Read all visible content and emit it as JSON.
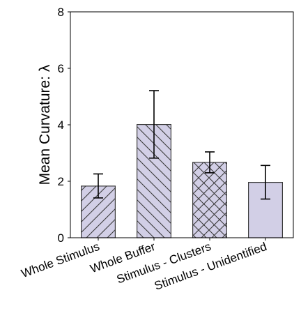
{
  "chart_data": {
    "type": "bar",
    "categories": [
      "Whole Stimulus",
      "Whole Buffer",
      "Stimulus - Clusters",
      "Stimulus - Unidentified"
    ],
    "values": [
      1.83,
      4.01,
      2.67,
      1.96
    ],
    "errors": [
      {
        "low": 1.41,
        "high": 2.26
      },
      {
        "low": 2.82,
        "high": 5.21
      },
      {
        "low": 2.3,
        "high": 3.04
      },
      {
        "low": 1.37,
        "high": 2.56
      }
    ],
    "hatches": [
      "diagonal-up",
      "diagonal-down",
      "crosshatch",
      "none"
    ],
    "ylabel": "Mean Curvature: λ",
    "xlabel": "",
    "title": "",
    "ylim": [
      0,
      8
    ],
    "yticks": [
      0,
      2,
      4,
      6,
      8
    ],
    "grid": false,
    "colors": {
      "bar_fill": "#d2cfe6",
      "bar_edge": "#3a3a3a",
      "hatch": "#3a3a3a",
      "error": "#000000"
    }
  }
}
